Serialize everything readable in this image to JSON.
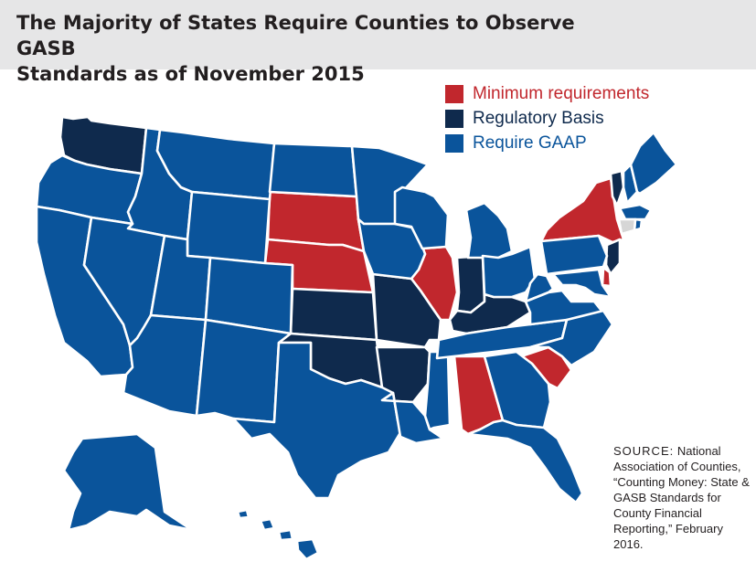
{
  "title_line1": "The Majority of States Require Counties to Observe GASB",
  "title_line2": "Standards as of November 2015",
  "legend": {
    "minimum": {
      "label": "Minimum requirements",
      "color": "#c1272d"
    },
    "regulatory": {
      "label": "Regulatory Basis",
      "color": "#0f2a4d"
    },
    "gaap": {
      "label": "Require GAAP",
      "color": "#0a549b"
    }
  },
  "no_data_color": "#d6d6d6",
  "source": {
    "tag": "SOURCE:",
    "text": "National Association of Counties, “Counting Money: State & GASB Standards for County Financial Reporting,” February 2016."
  },
  "states": {
    "minimum": [
      "SD",
      "NE",
      "IL",
      "AL",
      "SC",
      "NY",
      "DE"
    ],
    "regulatory": [
      "WA",
      "KS",
      "MO",
      "OK",
      "AR",
      "IN",
      "KY",
      "NJ",
      "VT"
    ],
    "gaap": [
      "OR",
      "CA",
      "ID",
      "NV",
      "MT",
      "WY",
      "UT",
      "AZ",
      "CO",
      "NM",
      "ND",
      "TX",
      "MN",
      "IA",
      "WI",
      "LA",
      "MI",
      "MS",
      "TN",
      "OH",
      "GA",
      "FL",
      "WV",
      "VA",
      "NC",
      "PA",
      "MD",
      "NH",
      "ME",
      "MA",
      "RI",
      "AK",
      "HI"
    ],
    "no_data": [
      "CT"
    ]
  }
}
